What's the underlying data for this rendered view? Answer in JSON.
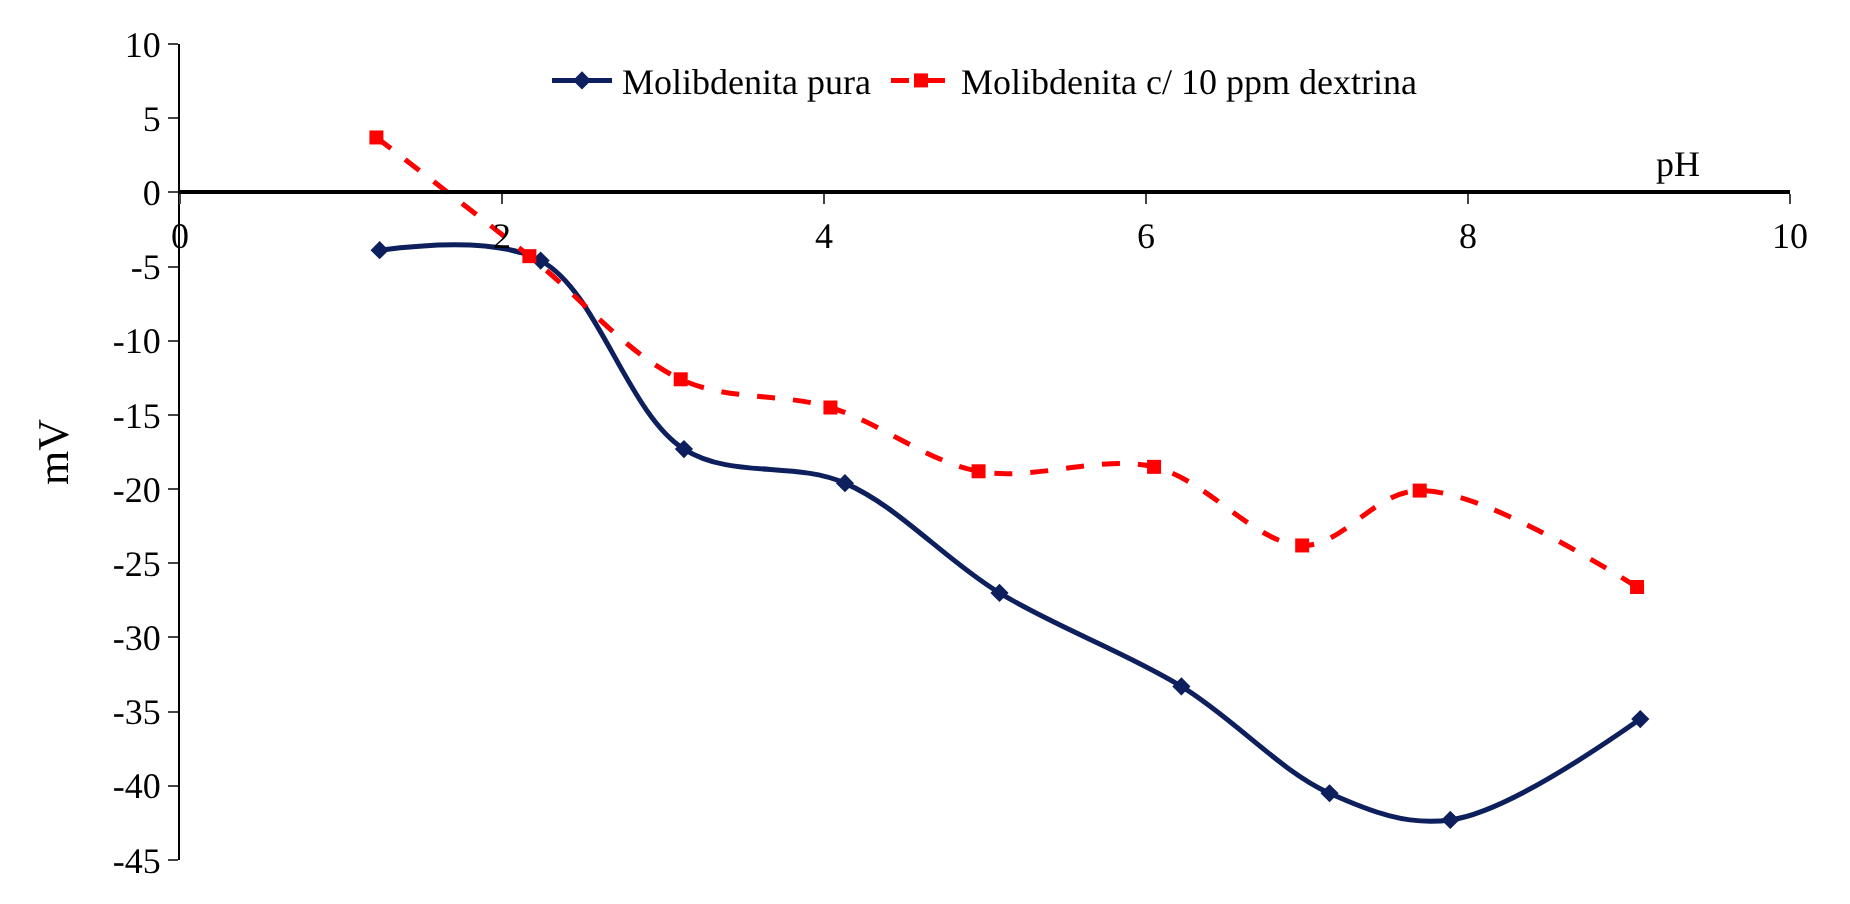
{
  "chart_data": {
    "type": "line",
    "xlabel": "pH",
    "ylabel": "mV",
    "xlim": [
      0,
      10
    ],
    "xticks": [
      0,
      2,
      4,
      6,
      8,
      10
    ],
    "ylim": [
      -45,
      10
    ],
    "yticks": [
      -45,
      -40,
      -35,
      -30,
      -25,
      -20,
      -15,
      -10,
      -5,
      0,
      5,
      10
    ],
    "legend": "top",
    "series": [
      {
        "name": "Molibdenita pura",
        "color": "#0d1f5c",
        "marker": "diamond",
        "line_style": "solid",
        "x": [
          1.24,
          2.24,
          3.13,
          4.13,
          5.09,
          6.22,
          7.14,
          7.89,
          9.07
        ],
        "values": [
          -3.9,
          -4.6,
          -17.3,
          -19.6,
          -27,
          -33.3,
          -40.5,
          -42.3,
          -35.5
        ]
      },
      {
        "name": "Molibdenita c/ 10 ppm dextrina",
        "color": "#ff0000",
        "marker": "square",
        "line_style": "dashed",
        "x": [
          1.22,
          2.17,
          3.11,
          4.04,
          4.96,
          6.05,
          6.97,
          7.7,
          9.05
        ],
        "values": [
          3.7,
          -4.3,
          -12.6,
          -14.5,
          -18.8,
          -18.5,
          -23.8,
          -20.1,
          -26.6
        ]
      }
    ]
  }
}
